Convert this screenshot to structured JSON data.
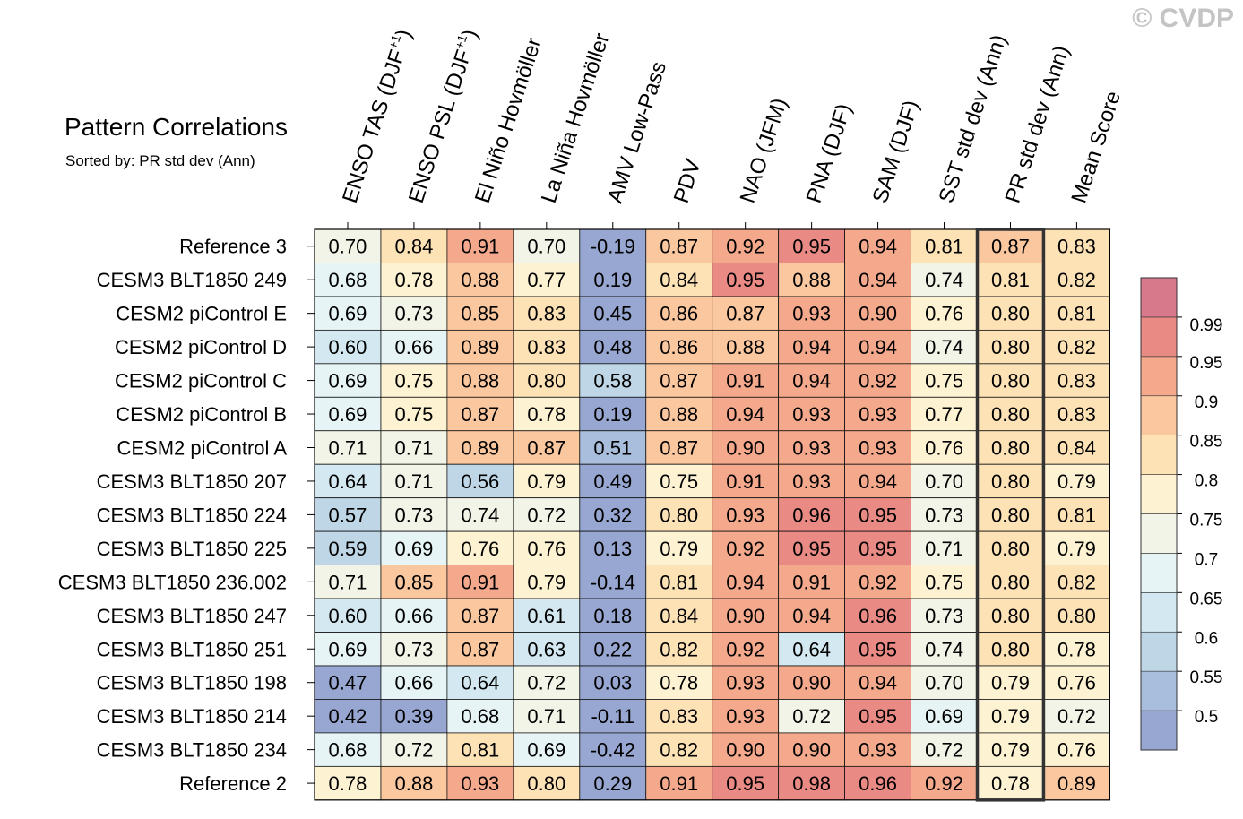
{
  "title": "Pattern Correlations",
  "subtitle": "Sorted by: PR std dev (Ann)",
  "watermark": "© CVDP",
  "chart_data": {
    "type": "heatmap",
    "columns": [
      {
        "text": "ENSO TAS (DJF",
        "sup": "+1",
        "close": ")"
      },
      {
        "text": "ENSO PSL (DJF",
        "sup": "+1",
        "close": ")"
      },
      {
        "text": "El Niño Hovmöller"
      },
      {
        "text": "La Niña Hovmöller"
      },
      {
        "text": "AMV Low-Pass"
      },
      {
        "text": "PDV"
      },
      {
        "text": "NAO (JFM)"
      },
      {
        "text": "PNA (DJF)"
      },
      {
        "text": "SAM (DJF)"
      },
      {
        "text": "SST std dev (Ann)"
      },
      {
        "text": "PR std dev (Ann)"
      },
      {
        "text": "Mean Score"
      }
    ],
    "sorted_column_index": 10,
    "rows": [
      "Reference 3",
      "CESM3 BLT1850 249",
      "CESM2 piControl E",
      "CESM2 piControl D",
      "CESM2 piControl C",
      "CESM2 piControl B",
      "CESM2 piControl A",
      "CESM3 BLT1850 207",
      "CESM3 BLT1850 224",
      "CESM3 BLT1850 225",
      "CESM3 BLT1850 236.002",
      "CESM3 BLT1850 247",
      "CESM3 BLT1850 251",
      "CESM3 BLT1850 198",
      "CESM3 BLT1850 214",
      "CESM3 BLT1850 234",
      "Reference 2"
    ],
    "values": [
      [
        "0.70",
        "0.84",
        "0.91",
        "0.70",
        "-0.19",
        "0.87",
        "0.92",
        "0.95",
        "0.94",
        "0.81",
        "0.87",
        "0.83"
      ],
      [
        "0.68",
        "0.78",
        "0.88",
        "0.77",
        "0.19",
        "0.84",
        "0.95",
        "0.88",
        "0.94",
        "0.74",
        "0.81",
        "0.82"
      ],
      [
        "0.69",
        "0.73",
        "0.85",
        "0.83",
        "0.45",
        "0.86",
        "0.87",
        "0.93",
        "0.90",
        "0.76",
        "0.80",
        "0.81"
      ],
      [
        "0.60",
        "0.66",
        "0.89",
        "0.83",
        "0.48",
        "0.86",
        "0.88",
        "0.94",
        "0.94",
        "0.74",
        "0.80",
        "0.82"
      ],
      [
        "0.69",
        "0.75",
        "0.88",
        "0.80",
        "0.58",
        "0.87",
        "0.91",
        "0.94",
        "0.92",
        "0.75",
        "0.80",
        "0.83"
      ],
      [
        "0.69",
        "0.75",
        "0.87",
        "0.78",
        "0.19",
        "0.88",
        "0.94",
        "0.93",
        "0.93",
        "0.77",
        "0.80",
        "0.83"
      ],
      [
        "0.71",
        "0.71",
        "0.89",
        "0.87",
        "0.51",
        "0.87",
        "0.90",
        "0.93",
        "0.93",
        "0.76",
        "0.80",
        "0.84"
      ],
      [
        "0.64",
        "0.71",
        "0.56",
        "0.79",
        "0.49",
        "0.75",
        "0.91",
        "0.93",
        "0.94",
        "0.70",
        "0.80",
        "0.79"
      ],
      [
        "0.57",
        "0.73",
        "0.74",
        "0.72",
        "0.32",
        "0.80",
        "0.93",
        "0.96",
        "0.95",
        "0.73",
        "0.80",
        "0.81"
      ],
      [
        "0.59",
        "0.69",
        "0.76",
        "0.76",
        "0.13",
        "0.79",
        "0.92",
        "0.95",
        "0.95",
        "0.71",
        "0.80",
        "0.79"
      ],
      [
        "0.71",
        "0.85",
        "0.91",
        "0.79",
        "-0.14",
        "0.81",
        "0.94",
        "0.91",
        "0.92",
        "0.75",
        "0.80",
        "0.82"
      ],
      [
        "0.60",
        "0.66",
        "0.87",
        "0.61",
        "0.18",
        "0.84",
        "0.90",
        "0.94",
        "0.96",
        "0.73",
        "0.80",
        "0.80"
      ],
      [
        "0.69",
        "0.73",
        "0.87",
        "0.63",
        "0.22",
        "0.82",
        "0.92",
        "0.64",
        "0.95",
        "0.74",
        "0.80",
        "0.78"
      ],
      [
        "0.47",
        "0.66",
        "0.64",
        "0.72",
        "0.03",
        "0.78",
        "0.93",
        "0.90",
        "0.94",
        "0.70",
        "0.79",
        "0.76"
      ],
      [
        "0.42",
        "0.39",
        "0.68",
        "0.71",
        "-0.11",
        "0.83",
        "0.93",
        "0.72",
        "0.95",
        "0.69",
        "0.79",
        "0.72"
      ],
      [
        "0.68",
        "0.72",
        "0.81",
        "0.69",
        "-0.42",
        "0.82",
        "0.90",
        "0.90",
        "0.93",
        "0.72",
        "0.79",
        "0.76"
      ],
      [
        "0.78",
        "0.88",
        "0.93",
        "0.80",
        "0.29",
        "0.91",
        "0.95",
        "0.98",
        "0.96",
        "0.92",
        "0.78",
        "0.89"
      ]
    ],
    "colorbar": {
      "levels": [
        0.5,
        0.55,
        0.6,
        0.65,
        0.7,
        0.75,
        0.8,
        0.85,
        0.9,
        0.95,
        0.99
      ],
      "labels": [
        "0.5",
        "0.55",
        "0.6",
        "0.65",
        "0.7",
        "0.75",
        "0.8",
        "0.85",
        "0.9",
        "0.95",
        "0.99"
      ],
      "colors": [
        "#97a7d1",
        "#a9bedc",
        "#bed6e6",
        "#d3e8f1",
        "#e6f4f6",
        "#f3f4e8",
        "#fdf3d2",
        "#fde2b6",
        "#fbc79f",
        "#f5a98c",
        "#ea8a85",
        "#d7798b"
      ]
    }
  }
}
